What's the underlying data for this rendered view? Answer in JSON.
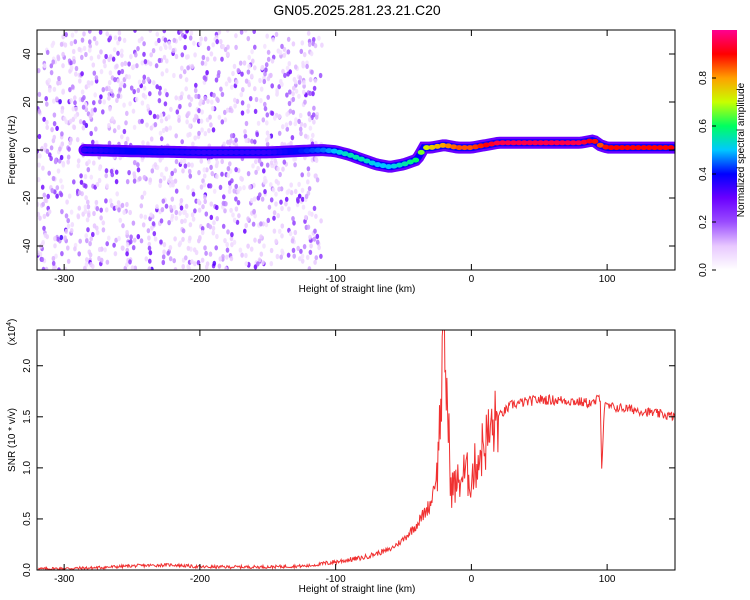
{
  "title": "GN05.2025.281.23.21.C20",
  "spectrogram": {
    "type": "heatmap",
    "xlabel": "Height of straight line (km)",
    "ylabel": "Frequency (Hz)",
    "xlim": [
      -320,
      150
    ],
    "ylim": [
      -50,
      50
    ],
    "xticks": [
      -300,
      -200,
      -100,
      0,
      100
    ],
    "xtick_labels": [
      "-300",
      "-200",
      "-100",
      "0",
      "100"
    ],
    "yticks": [
      -40,
      -20,
      0,
      20,
      40
    ],
    "ytick_labels": [
      "-40",
      "-20",
      "0",
      "20",
      "40"
    ],
    "colorbar": {
      "label": "Normalized spectral amplitude",
      "range": [
        0,
        1
      ],
      "ticks": [
        0.0,
        0.2,
        0.4,
        0.6,
        0.8
      ],
      "tick_labels": [
        "0.0",
        "0.2",
        "0.4",
        "0.6",
        "0.8"
      ],
      "colors": [
        "#ffffff",
        "#e8c8ff",
        "#9a4cff",
        "#6a00ff",
        "#0000ff",
        "#00c8ff",
        "#00ff60",
        "#c8ff00",
        "#ffa000",
        "#ff0000",
        "#ff0090"
      ]
    },
    "ridge": {
      "x": [
        -285,
        -250,
        -200,
        -150,
        -110,
        -100,
        -90,
        -80,
        -70,
        -60,
        -50,
        -40,
        -35,
        -30,
        -20,
        -10,
        0,
        10,
        20,
        50,
        80,
        90,
        95,
        100,
        130,
        150
      ],
      "freq": [
        0,
        -0.5,
        -1,
        -1,
        0,
        -0.5,
        -2,
        -4,
        -6,
        -7,
        -6,
        -4,
        1,
        1,
        2,
        1,
        1,
        2,
        3,
        3,
        3,
        4,
        2,
        1,
        1,
        1
      ],
      "amplitude": [
        0.35,
        0.4,
        0.35,
        0.35,
        0.45,
        0.5,
        0.55,
        0.55,
        0.5,
        0.5,
        0.55,
        0.6,
        0.7,
        0.75,
        0.8,
        0.85,
        0.85,
        0.9,
        0.95,
        0.95,
        0.95,
        0.9,
        0.85,
        0.9,
        0.9,
        0.9
      ]
    }
  },
  "snr": {
    "type": "line",
    "xlabel": "Height of straight line (km)",
    "ylabel": "SNR (10 * v/v)",
    "scale_label": "(x10",
    "scale_exp": "4",
    "xlim": [
      -320,
      150
    ],
    "ylim": [
      0,
      2.35
    ],
    "xticks": [
      -300,
      -200,
      -100,
      0,
      100
    ],
    "xtick_labels": [
      "-300",
      "-200",
      "-100",
      "0",
      "100"
    ],
    "yticks": [
      0,
      0.5,
      1.0,
      1.5,
      2.0
    ],
    "ytick_labels": [
      "0.0",
      "0.5",
      "1.0",
      "1.5",
      "2.0"
    ],
    "color": "#f03030",
    "series": {
      "name": "SNR",
      "x": [
        -320,
        -280,
        -250,
        -220,
        -200,
        -150,
        -120,
        -100,
        -80,
        -60,
        -50,
        -40,
        -30,
        -25,
        -20,
        -15,
        -10,
        -5,
        0,
        5,
        10,
        20,
        30,
        50,
        70,
        90,
        95,
        96,
        98,
        100,
        120,
        150
      ],
      "y": [
        0.01,
        0.02,
        0.04,
        0.05,
        0.03,
        0.03,
        0.04,
        0.08,
        0.12,
        0.2,
        0.3,
        0.45,
        0.65,
        1.0,
        2.3,
        0.8,
        0.85,
        0.95,
        0.9,
        1.1,
        1.25,
        1.5,
        1.62,
        1.67,
        1.66,
        1.63,
        1.7,
        1.0,
        1.6,
        1.6,
        1.57,
        1.5
      ]
    }
  }
}
